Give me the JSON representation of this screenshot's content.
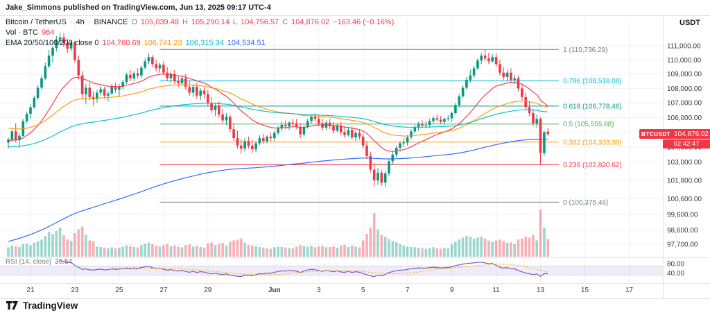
{
  "header": {
    "published_line": "Jake_Simmons published on TradingView.com, Jun 13, 2025 09:17 UTC-4"
  },
  "footer": {
    "brand": "TradingView"
  },
  "axis_panel": {
    "currency_label": "USDT",
    "price_badge": {
      "symbol": "BTCUSDT",
      "price": "104,876.02",
      "countdown": "02:42:47",
      "color": "#f23645"
    }
  },
  "legend": {
    "symbol_row": [
      {
        "t": "Bitcoin / TetherUS",
        "c": "#131722"
      },
      {
        "t": "·",
        "c": "#787b86"
      },
      {
        "t": "4h",
        "c": "#131722"
      },
      {
        "t": "·",
        "c": "#787b86"
      },
      {
        "t": "BINANCE",
        "c": "#131722"
      },
      {
        "t": "O",
        "c": "#787b86"
      },
      {
        "t": "105,039.48",
        "c": "#f23645"
      },
      {
        "t": "H",
        "c": "#787b86"
      },
      {
        "t": "105,290.14",
        "c": "#f23645"
      },
      {
        "t": "L",
        "c": "#787b86"
      },
      {
        "t": "104,756.57",
        "c": "#f23645"
      },
      {
        "t": "C",
        "c": "#787b86"
      },
      {
        "t": "104,876.02",
        "c": "#f23645"
      },
      {
        "t": "−163.46 (−0.16%)",
        "c": "#f23645"
      }
    ],
    "volume_row": [
      {
        "t": "Vol · BTC",
        "c": "#131722"
      },
      {
        "t": "964",
        "c": "#f23645"
      }
    ],
    "ema_row": [
      {
        "t": "EMA 20/50/100/200 close 0",
        "c": "#131722"
      },
      {
        "t": "104,760.69",
        "c": "#f23645"
      },
      {
        "t": "106,741.23",
        "c": "#ff9800"
      },
      {
        "t": "106,315.34",
        "c": "#00bcd4"
      },
      {
        "t": "104,534.51",
        "c": "#2962ff"
      }
    ],
    "rsi_row": [
      {
        "t": "RSI (14, close)",
        "c": "#787b86"
      },
      {
        "t": "36.54",
        "c": "#7e57c2"
      }
    ]
  },
  "chart_data": {
    "type": "candlestick",
    "symbol": "BTCUSDT",
    "exchange": "BINANCE",
    "interval": "4h",
    "last_close": 104876.02,
    "change": "−163.46 (−0.16%)",
    "colors": {
      "up": "#089981",
      "down": "#f23645",
      "grid": "#eef0f5",
      "axis_text": "#363a45",
      "separator": "#e0e3eb"
    },
    "price_scale": "log",
    "price_axis_labels": [
      {
        "v": 111000,
        "t": "111,000.00"
      },
      {
        "v": 110000,
        "t": "110,000.00"
      },
      {
        "v": 109000,
        "t": "109,000.00"
      },
      {
        "v": 108000,
        "t": "108,000.00"
      },
      {
        "v": 107000,
        "t": "107,000.00"
      },
      {
        "v": 106000,
        "t": "106,000.00"
      },
      {
        "v": 105000,
        "t": "105,000.00"
      },
      {
        "v": 104000,
        "t": "104,000.00"
      },
      {
        "v": 103000,
        "t": "103,000.00"
      },
      {
        "v": 101800,
        "t": "101,800.00"
      },
      {
        "v": 100600,
        "t": "100,600.00"
      },
      {
        "v": 99600,
        "t": "99,600.00"
      },
      {
        "v": 98600,
        "t": "98,600.00"
      },
      {
        "v": 97700,
        "t": "97,700.00"
      }
    ],
    "time_ticks": [
      {
        "i": 6,
        "t": "21"
      },
      {
        "i": 18,
        "t": "23"
      },
      {
        "i": 30,
        "t": "25"
      },
      {
        "i": 42,
        "t": "27"
      },
      {
        "i": 54,
        "t": "29"
      },
      {
        "i": 72,
        "t": "Jun",
        "bold": true
      },
      {
        "i": 84,
        "t": "3"
      },
      {
        "i": 96,
        "t": "5"
      },
      {
        "i": 108,
        "t": "7"
      },
      {
        "i": 120,
        "t": "9"
      },
      {
        "i": 132,
        "t": "11"
      },
      {
        "i": 144,
        "t": "13"
      },
      {
        "i": 156,
        "t": "15"
      },
      {
        "i": 168,
        "t": "17"
      }
    ],
    "fib_span": {
      "start_index": 41,
      "end_index": 149
    },
    "fib_levels": [
      {
        "t": "1 (110,736.29)",
        "v": 110736.29,
        "c": "#787b86"
      },
      {
        "t": "0.786 (108,519.08)",
        "v": 108519.08,
        "c": "#00bcd4"
      },
      {
        "t": "0.618 (106,778.46)",
        "v": 106778.46,
        "c": "#089981"
      },
      {
        "t": "0.5 (105,555.88)",
        "v": 105555.88,
        "c": "#4caf50"
      },
      {
        "t": "0.382 (104,333.30)",
        "v": 104333.3,
        "c": "#ff9800"
      },
      {
        "t": "0.236 (102,820.62)",
        "v": 102820.62,
        "c": "#f23645"
      },
      {
        "t": "0 (100,375.46)",
        "v": 100375.46,
        "c": "#787b86"
      }
    ],
    "emas": [
      {
        "period": 20,
        "seed": 104400,
        "color": "#f23645",
        "last_label": "104,760.69"
      },
      {
        "period": 50,
        "seed": 105300,
        "color": "#ff9800",
        "last_label": "106,741.23"
      },
      {
        "period": 100,
        "seed": 104000,
        "color": "#00bcd4",
        "last_label": "106,315.34"
      },
      {
        "period": 200,
        "seed": 97800,
        "color": "#2962ff",
        "last_label": "104,534.51"
      }
    ],
    "volume": {
      "up_color": "rgba(8,153,129,0.4)",
      "down_color": "rgba(242,54,69,0.4)",
      "last_value": "964"
    },
    "rsi": {
      "period": 14,
      "value_label": "36.54",
      "band": [
        30,
        70
      ],
      "line_color": "#7e57c2",
      "ma_color": "#f0b90b",
      "band_fill": "rgba(126,87,194,0.12)",
      "axis_labels": [
        {
          "v": 80,
          "t": "80.00"
        },
        {
          "v": 40,
          "t": "40.00"
        }
      ]
    },
    "candles": [
      [
        104300,
        104650,
        103900,
        104500,
        520
      ],
      [
        104500,
        105200,
        104350,
        105050,
        610
      ],
      [
        105050,
        105600,
        104300,
        104450,
        580
      ],
      [
        104450,
        104900,
        103950,
        104750,
        540
      ],
      [
        104750,
        105900,
        104700,
        105750,
        690
      ],
      [
        105750,
        106400,
        105600,
        106250,
        720
      ],
      [
        106250,
        106900,
        105900,
        106700,
        640
      ],
      [
        106700,
        107500,
        106600,
        107350,
        780
      ],
      [
        107350,
        108200,
        107200,
        108050,
        860
      ],
      [
        108050,
        108900,
        107900,
        108700,
        940
      ],
      [
        108700,
        109800,
        108600,
        109550,
        1150
      ],
      [
        109550,
        110700,
        109400,
        110300,
        1380
      ],
      [
        110300,
        111000,
        109800,
        110850,
        1250
      ],
      [
        110850,
        111700,
        110600,
        111450,
        1420
      ],
      [
        111450,
        111960,
        111100,
        111600,
        1600
      ],
      [
        111600,
        111900,
        110900,
        111200,
        1180
      ],
      [
        111200,
        111500,
        110500,
        110800,
        950
      ],
      [
        110800,
        111400,
        110600,
        111250,
        880
      ],
      [
        111250,
        111350,
        109800,
        110000,
        1300
      ],
      [
        110000,
        110300,
        108600,
        108900,
        1500
      ],
      [
        108900,
        109200,
        107300,
        107600,
        1650
      ],
      [
        107600,
        108300,
        106900,
        108050,
        1200
      ],
      [
        108050,
        108400,
        107200,
        107400,
        900
      ],
      [
        107400,
        107800,
        106800,
        107250,
        860
      ],
      [
        107250,
        107900,
        107000,
        107700,
        560
      ],
      [
        107700,
        108200,
        107500,
        107950,
        540
      ],
      [
        107950,
        108100,
        107300,
        107500,
        500
      ],
      [
        107500,
        107800,
        107100,
        107650,
        460
      ],
      [
        107650,
        108300,
        107550,
        108150,
        520
      ],
      [
        108150,
        108400,
        107700,
        107900,
        480
      ],
      [
        107900,
        108300,
        107400,
        108100,
        500
      ],
      [
        108100,
        108600,
        107900,
        108450,
        560
      ],
      [
        108450,
        109100,
        108300,
        108950,
        620
      ],
      [
        108950,
        109300,
        108500,
        108700,
        580
      ],
      [
        108700,
        109200,
        108500,
        109050,
        540
      ],
      [
        109050,
        109400,
        108700,
        108900,
        520
      ],
      [
        108900,
        109600,
        108700,
        109450,
        640
      ],
      [
        109450,
        110100,
        109300,
        109900,
        720
      ],
      [
        109900,
        110450,
        109700,
        110200,
        780
      ],
      [
        110200,
        110350,
        109500,
        109700,
        690
      ],
      [
        109700,
        110000,
        109200,
        109400,
        600
      ],
      [
        109400,
        109800,
        109100,
        109650,
        560
      ],
      [
        109650,
        109900,
        108900,
        109100,
        640
      ],
      [
        109100,
        109500,
        108500,
        108700,
        700
      ],
      [
        108700,
        109200,
        108400,
        109000,
        580
      ],
      [
        109000,
        109300,
        108300,
        108500,
        620
      ],
      [
        108500,
        108900,
        108100,
        108350,
        560
      ],
      [
        108350,
        108900,
        108200,
        108700,
        520
      ],
      [
        108700,
        109000,
        107900,
        108100,
        640
      ],
      [
        108100,
        108500,
        107500,
        107700,
        680
      ],
      [
        107700,
        108300,
        107400,
        108100,
        560
      ],
      [
        108100,
        108400,
        107300,
        107500,
        600
      ],
      [
        107500,
        108000,
        107200,
        107850,
        540
      ],
      [
        107850,
        108100,
        107300,
        107600,
        500
      ],
      [
        107600,
        107900,
        106800,
        107000,
        720
      ],
      [
        107000,
        107400,
        106300,
        106500,
        780
      ],
      [
        106500,
        107000,
        106100,
        106800,
        640
      ],
      [
        106800,
        107100,
        106000,
        106200,
        700
      ],
      [
        106200,
        106600,
        105600,
        105800,
        760
      ],
      [
        105800,
        106300,
        105500,
        106050,
        620
      ],
      [
        106050,
        106200,
        105000,
        105200,
        820
      ],
      [
        105200,
        105600,
        104400,
        104600,
        900
      ],
      [
        104600,
        105100,
        103900,
        104100,
        950
      ],
      [
        104100,
        104500,
        103550,
        103900,
        1000
      ],
      [
        103900,
        104600,
        103700,
        104400,
        780
      ],
      [
        104400,
        104700,
        103900,
        104100,
        660
      ],
      [
        104100,
        104500,
        103600,
        103850,
        620
      ],
      [
        103850,
        104400,
        103650,
        104250,
        580
      ],
      [
        104250,
        104800,
        104100,
        104600,
        540
      ],
      [
        104600,
        104900,
        104200,
        104400,
        500
      ],
      [
        104400,
        104800,
        104250,
        104700,
        460
      ],
      [
        104700,
        104950,
        104400,
        104600,
        440
      ],
      [
        104600,
        105100,
        104400,
        104950,
        520
      ],
      [
        104950,
        105400,
        104800,
        105250,
        560
      ],
      [
        105250,
        105700,
        105050,
        105500,
        540
      ],
      [
        105500,
        105800,
        105200,
        105400,
        500
      ],
      [
        105400,
        105750,
        105150,
        105650,
        480
      ],
      [
        105650,
        105900,
        105400,
        105600,
        460
      ],
      [
        105600,
        105900,
        105200,
        105350,
        560
      ],
      [
        105350,
        105600,
        104600,
        104850,
        640
      ],
      [
        104850,
        105500,
        104700,
        105350,
        580
      ],
      [
        105350,
        105900,
        105250,
        105750,
        560
      ],
      [
        105750,
        106200,
        105600,
        106050,
        600
      ],
      [
        106050,
        106300,
        105700,
        105900,
        520
      ],
      [
        105900,
        106200,
        105400,
        105600,
        560
      ],
      [
        105600,
        105900,
        105100,
        105300,
        600
      ],
      [
        105300,
        105800,
        105150,
        105650,
        520
      ],
      [
        105650,
        105900,
        105200,
        105400,
        540
      ],
      [
        105400,
        105700,
        104900,
        105100,
        580
      ],
      [
        105100,
        105600,
        105000,
        105450,
        500
      ],
      [
        105450,
        105700,
        104800,
        105000,
        620
      ],
      [
        105000,
        105400,
        104600,
        104800,
        660
      ],
      [
        104800,
        105300,
        104700,
        105150,
        540
      ],
      [
        105150,
        105400,
        104500,
        104650,
        620
      ],
      [
        104650,
        105100,
        104400,
        104950,
        560
      ],
      [
        104950,
        105200,
        104500,
        104700,
        520
      ],
      [
        104700,
        104900,
        103900,
        104100,
        900
      ],
      [
        104100,
        104400,
        103200,
        103400,
        1250
      ],
      [
        103400,
        103700,
        102300,
        102500,
        1600
      ],
      [
        102500,
        102900,
        101400,
        101800,
        2400
      ],
      [
        101800,
        102600,
        101500,
        102300,
        1500
      ],
      [
        102300,
        102500,
        101450,
        101650,
        1200
      ],
      [
        101650,
        102400,
        101350,
        102250,
        1100
      ],
      [
        102250,
        103200,
        102100,
        103050,
        980
      ],
      [
        103050,
        103700,
        102800,
        103500,
        860
      ],
      [
        103500,
        104100,
        103300,
        103950,
        800
      ],
      [
        103950,
        104400,
        103700,
        104250,
        700
      ],
      [
        104250,
        104600,
        104000,
        104300,
        620
      ],
      [
        104300,
        104800,
        104100,
        104650,
        560
      ],
      [
        104650,
        105200,
        104500,
        105050,
        540
      ],
      [
        105050,
        105500,
        104900,
        105350,
        520
      ],
      [
        105350,
        105700,
        105100,
        105550,
        500
      ],
      [
        105550,
        105800,
        105300,
        105450,
        460
      ],
      [
        105450,
        105750,
        105250,
        105500,
        440
      ],
      [
        105500,
        105900,
        105300,
        105750,
        480
      ],
      [
        105750,
        106100,
        105600,
        105950,
        520
      ],
      [
        105950,
        106200,
        105700,
        105850,
        460
      ],
      [
        105850,
        106100,
        105550,
        105700,
        440
      ],
      [
        105700,
        106000,
        105500,
        105900,
        480
      ],
      [
        105900,
        106150,
        105750,
        105950,
        460
      ],
      [
        105950,
        106400,
        105700,
        106300,
        680
      ],
      [
        106300,
        107000,
        106200,
        106850,
        820
      ],
      [
        106850,
        107600,
        106700,
        107450,
        950
      ],
      [
        107450,
        108200,
        107300,
        108050,
        1050
      ],
      [
        108050,
        108800,
        107900,
        108600,
        1150
      ],
      [
        108600,
        109300,
        108400,
        108900,
        1100
      ],
      [
        108900,
        109600,
        108700,
        109400,
        980
      ],
      [
        109400,
        110100,
        109300,
        109950,
        1050
      ],
      [
        109950,
        110500,
        109700,
        110300,
        1100
      ],
      [
        110300,
        110736,
        109900,
        110100,
        1000
      ],
      [
        110100,
        110500,
        109700,
        109900,
        880
      ],
      [
        109900,
        110400,
        109800,
        110200,
        820
      ],
      [
        110200,
        110450,
        109500,
        109700,
        900
      ],
      [
        109700,
        110000,
        108900,
        109100,
        950
      ],
      [
        109100,
        109500,
        108600,
        108800,
        880
      ],
      [
        108800,
        109300,
        108500,
        109100,
        760
      ],
      [
        109100,
        109400,
        108400,
        108600,
        800
      ],
      [
        108600,
        108950,
        108300,
        108700,
        700
      ],
      [
        108700,
        108900,
        107800,
        108000,
        950
      ],
      [
        108000,
        108300,
        107200,
        107400,
        1000
      ],
      [
        107400,
        107700,
        106500,
        106700,
        1100
      ],
      [
        106700,
        107100,
        106100,
        106300,
        1050
      ],
      [
        106300,
        106600,
        105400,
        105600,
        1200
      ],
      [
        105600,
        106200,
        105300,
        105900,
        900
      ],
      [
        105900,
        106000,
        102800,
        103600,
        2600
      ],
      [
        103600,
        105100,
        103400,
        105000,
        1600
      ],
      [
        105039.48,
        105290.14,
        104756.57,
        104876.02,
        964
      ]
    ]
  }
}
